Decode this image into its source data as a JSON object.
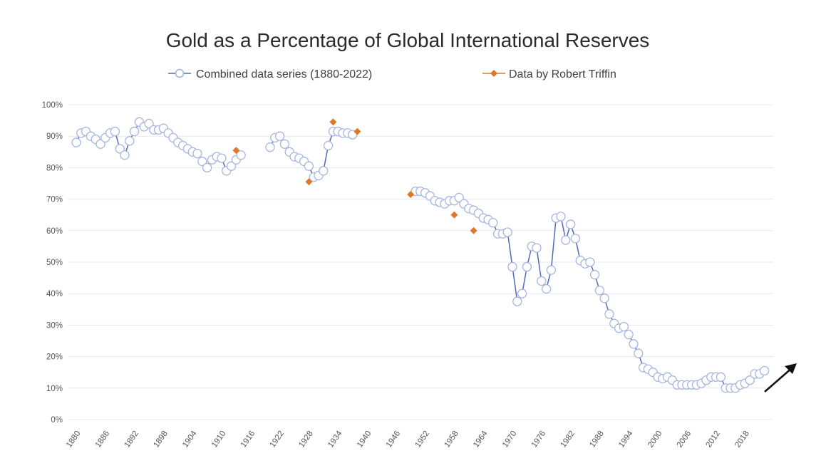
{
  "chart_data": {
    "type": "line",
    "title": "Gold as a Percentage of Global International Reserves",
    "xlabel": "",
    "ylabel": "",
    "xlim": [
      1880,
      2022
    ],
    "ylim": [
      0,
      100
    ],
    "y_ticks": [
      "0%",
      "10%",
      "20%",
      "30%",
      "40%",
      "50%",
      "60%",
      "70%",
      "80%",
      "90%",
      "100%"
    ],
    "x_ticks": [
      "1880",
      "1886",
      "1892",
      "1898",
      "1904",
      "1910",
      "1916",
      "1922",
      "1928",
      "1934",
      "1940",
      "1946",
      "1952",
      "1958",
      "1964",
      "1970",
      "1976",
      "1982",
      "1988",
      "1994",
      "2000",
      "2006",
      "2012",
      "2018"
    ],
    "grid": true,
    "legend_placement": "top",
    "annotation": "upward-arrow-at-end",
    "series": [
      {
        "name": "Combined data series (1880-2022)",
        "color": "#5468b8",
        "marker": "open-circle",
        "segments": [
          {
            "x": [
              1880,
              1881,
              1882,
              1883,
              1884,
              1885,
              1886,
              1887,
              1888,
              1889,
              1890,
              1891,
              1892,
              1893,
              1894,
              1895,
              1896,
              1897,
              1898,
              1899,
              1900,
              1901,
              1902,
              1903,
              1904,
              1905,
              1906,
              1907,
              1908,
              1909,
              1910,
              1911,
              1912,
              1913,
              1914
            ],
            "y": [
              88,
              91,
              91.5,
              90,
              89,
              87.5,
              89.5,
              91,
              91.5,
              86,
              84,
              88.5,
              91.5,
              94.5,
              93,
              94,
              92,
              92,
              92.5,
              91,
              89.5,
              88,
              87,
              86,
              85,
              84.5,
              82,
              80,
              82.5,
              83.5,
              83,
              79,
              80.5,
              82.5,
              84
            ]
          },
          {
            "x": [
              1920,
              1921,
              1922,
              1923,
              1924,
              1925,
              1926,
              1927,
              1928,
              1929,
              1930,
              1931,
              1932,
              1933,
              1934,
              1935,
              1936,
              1937
            ],
            "y": [
              86.5,
              89.5,
              90,
              87.5,
              85,
              83.5,
              83,
              82,
              80.5,
              77,
              77.5,
              79,
              87,
              91.5,
              91.5,
              91,
              91,
              90.5
            ]
          },
          {
            "x": [
              1950,
              1951,
              1952,
              1953,
              1954,
              1955,
              1956,
              1957,
              1958,
              1959,
              1960,
              1961,
              1962,
              1963,
              1964,
              1965,
              1966,
              1967,
              1968,
              1969,
              1970,
              1971,
              1972,
              1973,
              1974,
              1975,
              1976,
              1977,
              1978,
              1979,
              1980,
              1981,
              1982,
              1983,
              1984,
              1985,
              1986,
              1987,
              1988,
              1989,
              1990,
              1991,
              1992,
              1993,
              1994,
              1995,
              1996,
              1997,
              1998,
              1999,
              2000,
              2001,
              2002,
              2003,
              2004,
              2005,
              2006,
              2007,
              2008,
              2009,
              2010,
              2011,
              2012,
              2013,
              2014,
              2015,
              2016,
              2017,
              2018,
              2019,
              2020,
              2021,
              2022
            ],
            "y": [
              72.5,
              72.5,
              72,
              71,
              69.5,
              69,
              68.5,
              69.5,
              69.5,
              70.5,
              68.5,
              67,
              66.5,
              65.5,
              64,
              63.5,
              62.5,
              59,
              59,
              59.5,
              48.5,
              37.5,
              40,
              48.5,
              55,
              54.5,
              44,
              41.5,
              47.5,
              64,
              64.5,
              57,
              62,
              57.5,
              50.5,
              49.5,
              50,
              46,
              41,
              38.5,
              33.5,
              30.5,
              29,
              29.5,
              27,
              24,
              21,
              16.5,
              16,
              15,
              13.5,
              13,
              13.5,
              12.5,
              11,
              11,
              11,
              11,
              11,
              11.5,
              12.5,
              13.5,
              13.5,
              13.5,
              10,
              10,
              10,
              11,
              11.5,
              12.5,
              14.5,
              14.5,
              15.5
            ]
          }
        ]
      },
      {
        "name": "Data by Robert Triffin",
        "color": "#e0782a",
        "marker": "diamond",
        "x": [
          1913,
          1928,
          1933,
          1938,
          1949,
          1958,
          1962
        ],
        "y": [
          85.5,
          75.5,
          94.5,
          91.5,
          71.5,
          65,
          60
        ]
      }
    ]
  }
}
